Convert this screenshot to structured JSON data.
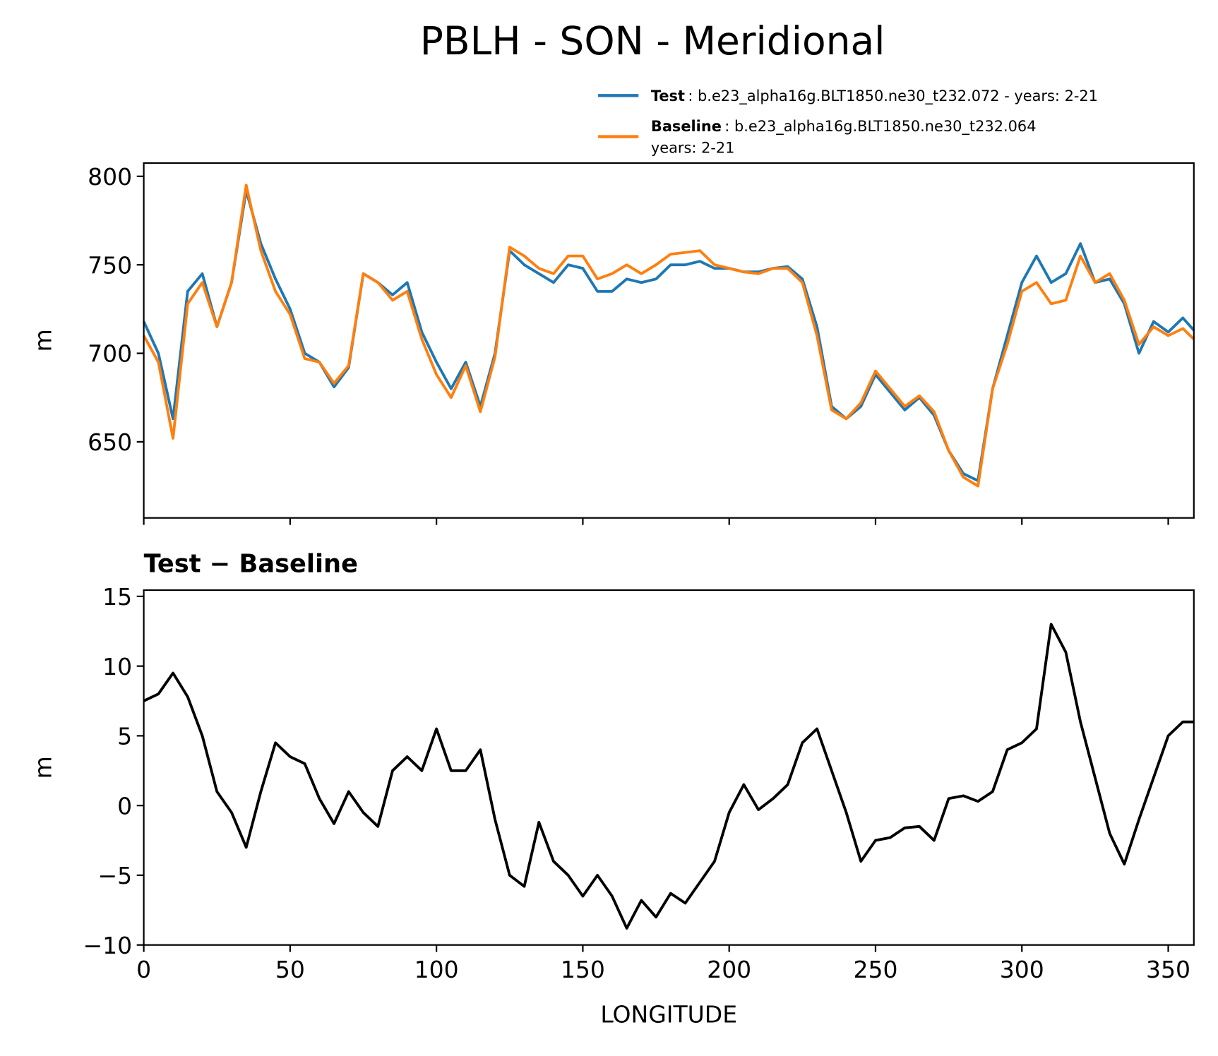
{
  "title": "PBLH - SON - Meridional",
  "chart_data": [
    {
      "type": "line",
      "ylabel": "m",
      "x": [
        0,
        5,
        10,
        15,
        20,
        25,
        30,
        35,
        40,
        45,
        50,
        55,
        60,
        65,
        70,
        75,
        80,
        85,
        90,
        95,
        100,
        105,
        110,
        115,
        120,
        125,
        130,
        135,
        140,
        145,
        150,
        155,
        160,
        165,
        170,
        175,
        180,
        185,
        190,
        195,
        200,
        205,
        210,
        215,
        220,
        225,
        230,
        235,
        240,
        245,
        250,
        255,
        260,
        265,
        270,
        275,
        280,
        285,
        290,
        295,
        300,
        305,
        310,
        315,
        320,
        325,
        330,
        335,
        340,
        345,
        350,
        355,
        358.75
      ],
      "series": [
        {
          "name": "Test",
          "description": [
            ": b.e23_alpha16g.BLT1850.ne30_t232.072 - years: 2-21"
          ],
          "color": "#1f77b4",
          "values": [
            718,
            700,
            663,
            735,
            745,
            715,
            740,
            792,
            762,
            742,
            725,
            700,
            695,
            681,
            692,
            745,
            740,
            733,
            740,
            712,
            695,
            680,
            695,
            670,
            700,
            758,
            750,
            745,
            740,
            750,
            748,
            735,
            735,
            742,
            740,
            742,
            750,
            750,
            752,
            748,
            748,
            746,
            746,
            748,
            749,
            742,
            715,
            670,
            663,
            670,
            688,
            678,
            668,
            675,
            665,
            645,
            632,
            628,
            680,
            710,
            740,
            755,
            740,
            745,
            762,
            740,
            742,
            728,
            700,
            718,
            712,
            720,
            713
          ]
        },
        {
          "name": "Baseline",
          "description": [
            ": b.e23_alpha16g.BLT1850.ne30_t232.064",
            "years: 2-21"
          ],
          "color": "#ff7f0e",
          "values": [
            710,
            695,
            652,
            728,
            740,
            715,
            740,
            795,
            758,
            735,
            722,
            697,
            695,
            683,
            693,
            745,
            740,
            730,
            735,
            708,
            688,
            675,
            693,
            667,
            698,
            760,
            755,
            748,
            745,
            755,
            755,
            742,
            745,
            750,
            745,
            750,
            756,
            757,
            758,
            750,
            748,
            746,
            745,
            748,
            748,
            740,
            710,
            668,
            663,
            672,
            690,
            680,
            670,
            676,
            667,
            645,
            630,
            625,
            680,
            705,
            735,
            740,
            728,
            730,
            755,
            740,
            745,
            730,
            705,
            715,
            710,
            714,
            708
          ]
        }
      ],
      "xlim": [
        0,
        358.75
      ],
      "xticks": [
        0,
        50,
        100,
        150,
        200,
        250,
        300,
        350
      ],
      "show_xticklabels": false,
      "ylim": [
        607,
        807.5
      ],
      "yticks": [
        650,
        700,
        750,
        800
      ]
    },
    {
      "type": "line",
      "title": "Test − Baseline",
      "xlabel": "LONGITUDE",
      "ylabel": "m",
      "color": "#000000",
      "x": [
        0,
        5,
        10,
        15,
        20,
        25,
        30,
        35,
        40,
        45,
        50,
        55,
        60,
        65,
        70,
        75,
        80,
        85,
        90,
        95,
        100,
        105,
        110,
        115,
        120,
        125,
        130,
        135,
        140,
        145,
        150,
        155,
        160,
        165,
        170,
        175,
        180,
        185,
        190,
        195,
        200,
        205,
        210,
        215,
        220,
        225,
        230,
        235,
        240,
        245,
        250,
        255,
        260,
        265,
        270,
        275,
        280,
        285,
        290,
        295,
        300,
        305,
        310,
        315,
        320,
        325,
        330,
        335,
        340,
        345,
        350,
        355,
        358.75
      ],
      "values": [
        7.5,
        8.0,
        9.5,
        7.8,
        5,
        1,
        -0.5,
        -3,
        1,
        4.5,
        3.5,
        3,
        0.5,
        -1.3,
        1,
        -0.5,
        -1.5,
        2.5,
        3.5,
        2.5,
        5.5,
        2.5,
        2.5,
        4,
        -1,
        -5,
        -5.8,
        -1.2,
        -4,
        -5,
        -6.5,
        -5,
        -6.5,
        -8.8,
        -6.8,
        -8,
        -6.3,
        -7,
        -5.5,
        -4,
        -0.5,
        1.5,
        -0.3,
        0.5,
        1.5,
        4.5,
        5.5,
        2.5,
        -0.5,
        -4,
        -2.5,
        -2.3,
        -1.6,
        -1.5,
        -2.5,
        0.5,
        0.7,
        0.3,
        1,
        4,
        4.5,
        5.5,
        13,
        11,
        6,
        2,
        -2,
        -4.2,
        -1,
        2,
        5,
        6,
        6
      ],
      "xlim": [
        0,
        358.75
      ],
      "xticks": [
        0,
        50,
        100,
        150,
        200,
        250,
        300,
        350
      ],
      "show_xticklabels": true,
      "ylim": [
        -10,
        15.45
      ],
      "yticks": [
        {
          "value": -10,
          "label": "−10"
        },
        {
          "value": -5,
          "label": "−5"
        },
        0,
        5,
        10,
        15
      ]
    }
  ]
}
